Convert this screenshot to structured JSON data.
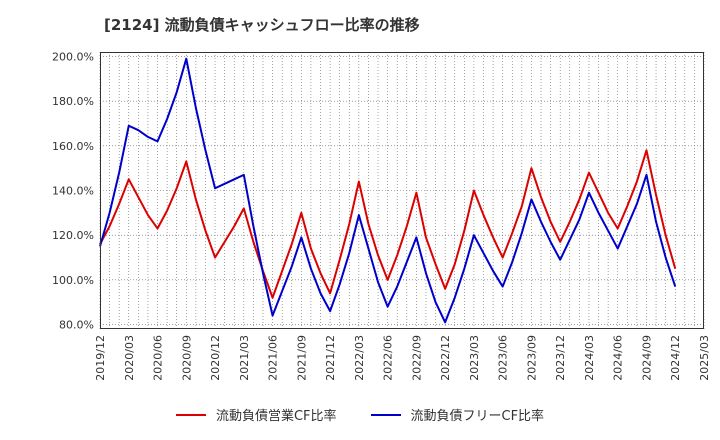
{
  "chart_data": {
    "type": "line",
    "title": "[2124]  流動負債キャッシュフロー比率の推移",
    "x_labels": [
      "2019/12",
      "2020/03",
      "2020/06",
      "2020/09",
      "2020/12",
      "2021/03",
      "2021/06",
      "2021/09",
      "2021/12",
      "2022/03",
      "2022/06",
      "2022/09",
      "2022/12",
      "2023/03",
      "2023/06",
      "2023/09",
      "2023/12",
      "2024/03",
      "2024/06",
      "2024/09",
      "2024/12",
      "2025/03"
    ],
    "ylim": [
      78,
      202
    ],
    "y_ticks": [
      80,
      100,
      120,
      140,
      160,
      180,
      200
    ],
    "y_tick_labels": [
      "80.0%",
      "100.0%",
      "120.0%",
      "140.0%",
      "160.0%",
      "180.0%",
      "200.0%"
    ],
    "grid": true,
    "legend_position": "bottom",
    "series": [
      {
        "name": "流動負債営業CF比率",
        "color": "#dd0000",
        "points": [
          [
            "2019/12",
            116
          ],
          [
            "2020/01",
            124
          ],
          [
            "2020/02",
            134
          ],
          [
            "2020/03",
            145
          ],
          [
            "2020/04",
            137
          ],
          [
            "2020/05",
            129
          ],
          [
            "2020/06",
            123
          ],
          [
            "2020/07",
            131
          ],
          [
            "2020/08",
            141
          ],
          [
            "2020/09",
            153
          ],
          [
            "2020/10",
            136
          ],
          [
            "2020/11",
            122
          ],
          [
            "2020/12",
            110
          ],
          [
            "2021/01",
            117
          ],
          [
            "2021/02",
            124
          ],
          [
            "2021/03",
            132
          ],
          [
            "2021/04",
            117
          ],
          [
            "2021/05",
            104
          ],
          [
            "2021/06",
            92
          ],
          [
            "2021/07",
            104
          ],
          [
            "2021/08",
            116
          ],
          [
            "2021/09",
            130
          ],
          [
            "2021/10",
            114
          ],
          [
            "2021/11",
            103
          ],
          [
            "2021/12",
            94
          ],
          [
            "2022/01",
            109
          ],
          [
            "2022/02",
            125
          ],
          [
            "2022/03",
            144
          ],
          [
            "2022/04",
            125
          ],
          [
            "2022/05",
            111
          ],
          [
            "2022/06",
            100
          ],
          [
            "2022/07",
            111
          ],
          [
            "2022/08",
            124
          ],
          [
            "2022/09",
            139
          ],
          [
            "2022/10",
            119
          ],
          [
            "2022/11",
            107
          ],
          [
            "2022/12",
            96
          ],
          [
            "2023/01",
            107
          ],
          [
            "2023/02",
            122
          ],
          [
            "2023/03",
            140
          ],
          [
            "2023/04",
            129
          ],
          [
            "2023/05",
            119
          ],
          [
            "2023/06",
            110
          ],
          [
            "2023/07",
            121
          ],
          [
            "2023/08",
            133
          ],
          [
            "2023/09",
            150
          ],
          [
            "2023/10",
            137
          ],
          [
            "2023/11",
            126
          ],
          [
            "2023/12",
            117
          ],
          [
            "2024/01",
            126
          ],
          [
            "2024/02",
            136
          ],
          [
            "2024/03",
            148
          ],
          [
            "2024/04",
            139
          ],
          [
            "2024/05",
            130
          ],
          [
            "2024/06",
            123
          ],
          [
            "2024/07",
            133
          ],
          [
            "2024/08",
            144
          ],
          [
            "2024/09",
            158
          ],
          [
            "2024/10",
            138
          ],
          [
            "2024/11",
            120
          ],
          [
            "2024/12",
            105
          ]
        ]
      },
      {
        "name": "流動負債フリーCF比率",
        "color": "#0000cc",
        "points": [
          [
            "2019/12",
            115
          ],
          [
            "2020/01",
            130
          ],
          [
            "2020/02",
            148
          ],
          [
            "2020/03",
            169
          ],
          [
            "2020/04",
            167
          ],
          [
            "2020/05",
            164
          ],
          [
            "2020/06",
            162
          ],
          [
            "2020/07",
            172
          ],
          [
            "2020/08",
            184
          ],
          [
            "2020/09",
            199
          ],
          [
            "2020/10",
            177
          ],
          [
            "2020/11",
            158
          ],
          [
            "2020/12",
            141
          ],
          [
            "2021/01",
            143
          ],
          [
            "2021/02",
            145
          ],
          [
            "2021/03",
            147
          ],
          [
            "2021/04",
            124
          ],
          [
            "2021/05",
            103
          ],
          [
            "2021/06",
            84
          ],
          [
            "2021/07",
            95
          ],
          [
            "2021/08",
            106
          ],
          [
            "2021/09",
            119
          ],
          [
            "2021/10",
            105
          ],
          [
            "2021/11",
            94
          ],
          [
            "2021/12",
            86
          ],
          [
            "2022/01",
            98
          ],
          [
            "2022/02",
            112
          ],
          [
            "2022/03",
            129
          ],
          [
            "2022/04",
            114
          ],
          [
            "2022/05",
            99
          ],
          [
            "2022/06",
            88
          ],
          [
            "2022/07",
            97
          ],
          [
            "2022/08",
            108
          ],
          [
            "2022/09",
            119
          ],
          [
            "2022/10",
            103
          ],
          [
            "2022/11",
            90
          ],
          [
            "2022/12",
            81
          ],
          [
            "2023/01",
            92
          ],
          [
            "2023/02",
            105
          ],
          [
            "2023/03",
            120
          ],
          [
            "2023/04",
            112
          ],
          [
            "2023/05",
            104
          ],
          [
            "2023/06",
            97
          ],
          [
            "2023/07",
            108
          ],
          [
            "2023/08",
            121
          ],
          [
            "2023/09",
            136
          ],
          [
            "2023/10",
            126
          ],
          [
            "2023/11",
            117
          ],
          [
            "2023/12",
            109
          ],
          [
            "2024/01",
            118
          ],
          [
            "2024/02",
            127
          ],
          [
            "2024/03",
            139
          ],
          [
            "2024/04",
            130
          ],
          [
            "2024/05",
            122
          ],
          [
            "2024/06",
            114
          ],
          [
            "2024/07",
            124
          ],
          [
            "2024/08",
            134
          ],
          [
            "2024/09",
            147
          ],
          [
            "2024/10",
            126
          ],
          [
            "2024/11",
            110
          ],
          [
            "2024/12",
            97
          ]
        ]
      }
    ]
  }
}
